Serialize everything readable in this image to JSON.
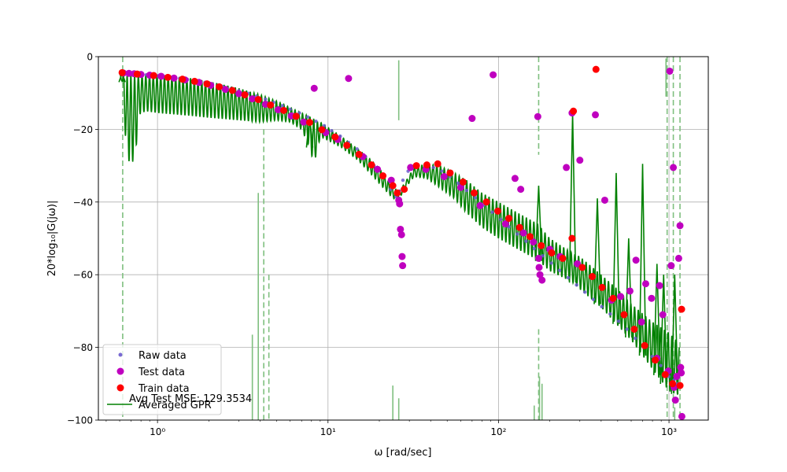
{
  "chart_data": {
    "type": "scatter",
    "title": "",
    "xlabel": "ω [rad/sec]",
    "ylabel": "20*log₁₀|G(jω)|",
    "xscale": "log",
    "xlim": [
      0.45,
      1700
    ],
    "ylim": [
      -100,
      0
    ],
    "grid": true,
    "legend_placement": "lower-left",
    "x_ticks": [
      {
        "value": 1,
        "label": "10⁰"
      },
      {
        "value": 10,
        "label": "10¹"
      },
      {
        "value": 100,
        "label": "10²"
      },
      {
        "value": 1000,
        "label": "10³"
      }
    ],
    "y_ticks": [
      {
        "value": 0,
        "label": "0"
      },
      {
        "value": -20,
        "label": "−20"
      },
      {
        "value": -40,
        "label": "−40"
      },
      {
        "value": -60,
        "label": "−60"
      },
      {
        "value": -80,
        "label": "−80"
      },
      {
        "value": -100,
        "label": "−100"
      }
    ],
    "colors": {
      "raw": "#6a5acd",
      "test": "#bf00bf",
      "train": "#ff0000",
      "gpr": "#008000",
      "band": "#7fbf7f"
    },
    "annotation": "Avg Test MSE: 129.3534",
    "series": [
      {
        "name": "Raw data",
        "marker": "small-dot",
        "x": [
          0.62,
          0.65,
          0.7,
          0.75,
          0.8,
          0.86,
          0.92,
          1.0,
          1.1,
          1.2,
          1.35,
          1.5,
          1.7,
          1.9,
          2.1,
          2.4,
          2.7,
          3.0,
          3.4,
          3.8,
          4.3,
          4.8,
          5.4,
          6.0,
          6.8,
          7.6,
          8.5,
          9.5,
          10.5,
          11.8,
          13.2,
          14.8,
          16.6,
          18.6,
          20.8,
          23.3,
          25.0,
          26.2,
          27.5,
          29.5,
          33.0,
          37.0,
          41.5,
          46.5,
          52.0,
          58.0,
          65.0,
          73.0,
          82.0,
          92.0,
          103.0,
          115.0,
          129.0,
          145.0,
          162.0,
          182.0,
          204.0,
          228.0,
          256.0,
          287.0,
          321.0,
          360.0,
          403.0,
          452.0,
          506.0,
          567.0,
          635.0,
          711.0,
          797.0,
          893.0,
          1000.0,
          1070.0,
          1120.0,
          1170.0
        ],
        "y": [
          -4.5,
          -4.6,
          -4.7,
          -4.8,
          -4.9,
          -5.0,
          -5.1,
          -5.3,
          -5.5,
          -5.7,
          -6.0,
          -6.3,
          -6.7,
          -7.1,
          -7.6,
          -8.2,
          -8.8,
          -9.4,
          -10.1,
          -10.9,
          -11.7,
          -12.6,
          -13.5,
          -14.5,
          -15.5,
          -16.6,
          -17.8,
          -19.0,
          -20.4,
          -21.9,
          -23.6,
          -25.4,
          -27.5,
          -30.0,
          -33.0,
          -36.5,
          -38.5,
          -37.0,
          -34.0,
          -31.5,
          -30.0,
          -30.0,
          -30.5,
          -31.5,
          -33.0,
          -34.8,
          -36.8,
          -38.8,
          -40.8,
          -42.8,
          -44.8,
          -46.8,
          -48.8,
          -50.8,
          -52.8,
          -54.8,
          -56.8,
          -58.8,
          -60.8,
          -62.8,
          -64.8,
          -66.8,
          -68.8,
          -70.8,
          -72.8,
          -75.0,
          -77.5,
          -80.0,
          -82.5,
          -85.0,
          -88.0,
          -89.0,
          -90.0,
          -90.5
        ]
      },
      {
        "name": "Test data",
        "marker": "circle",
        "x": [
          0.63,
          0.68,
          0.73,
          0.8,
          0.9,
          1.05,
          1.25,
          1.45,
          1.75,
          2.05,
          2.5,
          3.0,
          3.6,
          4.3,
          5.1,
          6.1,
          7.2,
          8.3,
          9.7,
          11.4,
          13.2,
          16.0,
          19.5,
          23.5,
          26.0,
          26.3,
          26.6,
          27.0,
          27.2,
          27.4,
          30.5,
          37.5,
          48.0,
          60.0,
          70.0,
          78.0,
          93.0,
          110.0,
          125.0,
          135.0,
          140.0,
          160.0,
          170.0,
          172.0,
          173.0,
          175.0,
          180.0,
          200.0,
          230.0,
          250.0,
          270.0,
          290.0,
          300.0,
          370.0,
          420.0,
          460.0,
          520.0,
          590.0,
          640.0,
          690.0,
          730.0,
          790.0,
          850.0,
          880.0,
          920.0,
          990.0,
          1010.0,
          1030.0,
          1060.0,
          1070.0,
          1090.0,
          1110.0,
          1140.0,
          1160.0,
          1170.0,
          1180.0,
          1190.0
        ],
        "y": [
          -4.5,
          -4.6,
          -4.7,
          -4.9,
          -5.1,
          -5.4,
          -5.9,
          -6.4,
          -7.1,
          -7.9,
          -9.0,
          -10.2,
          -11.6,
          -13.1,
          -14.6,
          -16.3,
          -18.0,
          -8.7,
          -20.9,
          -22.8,
          -6.0,
          -27.5,
          -31.0,
          -34.0,
          -39.5,
          -40.5,
          -47.5,
          -49.0,
          -55.0,
          -57.5,
          -30.5,
          -31.0,
          -33.0,
          -36.0,
          -17.0,
          -41.0,
          -5.0,
          -46.0,
          -33.5,
          -36.5,
          -48.5,
          -51.0,
          -16.5,
          -55.5,
          -58.0,
          -60.0,
          -61.5,
          -53.0,
          -55.0,
          -30.5,
          -15.5,
          -57.0,
          -28.5,
          -16.0,
          -39.5,
          -67.0,
          -66.0,
          -64.5,
          -56.0,
          -73.0,
          -62.5,
          -66.5,
          -83.0,
          -63.0,
          -71.0,
          -86.5,
          -4.0,
          -57.5,
          -30.5,
          -91.0,
          -94.5,
          -88.0,
          -55.5,
          -46.5,
          -85.5,
          -87.0,
          -99.0
        ]
      },
      {
        "name": "Train data",
        "marker": "circle",
        "x": [
          0.62,
          0.76,
          0.95,
          1.15,
          1.4,
          1.65,
          1.95,
          2.3,
          2.75,
          3.25,
          3.9,
          4.6,
          5.5,
          6.5,
          7.8,
          9.2,
          11.0,
          12.9,
          15.2,
          18.0,
          21.0,
          24.0,
          25.5,
          28.0,
          33.0,
          38.0,
          44.0,
          52.0,
          62.0,
          72.0,
          85.0,
          99.0,
          115.0,
          133.0,
          153.0,
          178.0,
          205.0,
          238.0,
          270.0,
          275.0,
          310.0,
          355.0,
          373.0,
          405.0,
          470.0,
          545.0,
          625.0,
          720.0,
          830.0,
          950.0,
          1050.0,
          1160.0,
          1185.0
        ],
        "y": [
          -4.4,
          -4.8,
          -5.2,
          -5.7,
          -6.2,
          -6.8,
          -7.5,
          -8.3,
          -9.3,
          -10.5,
          -11.8,
          -13.3,
          -14.8,
          -16.4,
          -18.1,
          -20.1,
          -22.1,
          -24.4,
          -26.9,
          -29.8,
          -32.8,
          -35.5,
          -37.5,
          -36.5,
          -30.0,
          -29.8,
          -29.5,
          -32.0,
          -34.5,
          -37.5,
          -40.0,
          -42.5,
          -44.5,
          -47.0,
          -49.5,
          -52.0,
          -54.0,
          -55.5,
          -50.0,
          -15.0,
          -58.0,
          -60.5,
          -3.5,
          -63.5,
          -66.5,
          -71.0,
          -75.0,
          -79.5,
          -83.5,
          -87.5,
          -90.0,
          -90.5,
          -69.5
        ]
      },
      {
        "name": "Averaged GPR",
        "marker": "line",
        "anchor_x": [
          0.6,
          0.62,
          0.66,
          0.7,
          0.74,
          0.78,
          0.85,
          1.0,
          1.5,
          2.0,
          3.0,
          4.0,
          5.0,
          6.0,
          7.0,
          7.8,
          8.2,
          8.6,
          9.0,
          10.0,
          12.0,
          15.0,
          18.0,
          21.0,
          24.0,
          26.0,
          28.0,
          32.0,
          38.0,
          45.0,
          55.0,
          65.0,
          80.0,
          100.0,
          130.0,
          170.0,
          200.0,
          270.0,
          300.0,
          400.0,
          500.0,
          600.0,
          800.0,
          1000.0,
          1100.0,
          1150.0
        ],
        "anchor_upper": [
          -5,
          -5,
          -5,
          -5,
          -5,
          -5,
          -5,
          -5,
          -5.8,
          -6.8,
          -8.7,
          -10.5,
          -12.2,
          -14.0,
          -15.5,
          -16.5,
          -17.0,
          -17.8,
          -18.0,
          -19.5,
          -22.0,
          -25.5,
          -28.5,
          -32.0,
          -36.0,
          -37.0,
          -35.0,
          -30.5,
          -29.5,
          -30.0,
          -32.0,
          -34.0,
          -37.5,
          -40.0,
          -43.0,
          -46.0,
          -50.0,
          -54.0,
          -55.0,
          -60.0,
          -64.0,
          -68.0,
          -73.0,
          -76.0,
          -78.0,
          -80.0
        ],
        "anchor_lower": [
          -5,
          -7,
          -28,
          -29.5,
          -28,
          -16,
          -15,
          -15.5,
          -16.2,
          -16.8,
          -17.5,
          -18.0,
          -17.5,
          -18.0,
          -20.0,
          -25.0,
          -29.0,
          -27.0,
          -22.0,
          -23.0,
          -25.0,
          -28.5,
          -32.5,
          -36.0,
          -39.0,
          -39.5,
          -36.5,
          -33.0,
          -33.5,
          -36.0,
          -39.0,
          -43.0,
          -47.0,
          -50.0,
          -53.0,
          -56.0,
          -59.0,
          -62.0,
          -64.0,
          -69.0,
          -74.0,
          -78.0,
          -86.0,
          -92.0,
          -93.0,
          -93.0
        ],
        "peaks": [
          {
            "x": 0.62,
            "y": -4.5
          },
          {
            "x": 7.8,
            "y": -16.5
          },
          {
            "x": 172.0,
            "y": -35.5
          },
          {
            "x": 272.0,
            "y": -15.5
          },
          {
            "x": 380.0,
            "y": -39.0
          },
          {
            "x": 490.0,
            "y": -32.0
          },
          {
            "x": 580.0,
            "y": -50.0
          },
          {
            "x": 700.0,
            "y": -29.5
          },
          {
            "x": 850.0,
            "y": -57.0
          },
          {
            "x": 930.0,
            "y": -60.0
          },
          {
            "x": 1080.0,
            "y": -60.0
          }
        ]
      }
    ],
    "uncertainty_lines": {
      "solid": [
        {
          "x": 3.6,
          "y1": -76.5,
          "y2": -100
        },
        {
          "x": 3.9,
          "y1": -37.5,
          "y2": -100
        },
        {
          "x": 24.0,
          "y1": -90.5,
          "y2": -100
        },
        {
          "x": 26.0,
          "y1": -1.0,
          "y2": -17.5
        },
        {
          "x": 26.0,
          "y1": -94.0,
          "y2": -100
        },
        {
          "x": 162.0,
          "y1": -96.0,
          "y2": -100
        },
        {
          "x": 174.0,
          "y1": -88.0,
          "y2": -100
        },
        {
          "x": 180.0,
          "y1": -90.0,
          "y2": -100
        },
        {
          "x": 960.0,
          "y1": -0.5,
          "y2": -11.0
        },
        {
          "x": 1080.0,
          "y1": -96.5,
          "y2": -100
        }
      ],
      "dashed": [
        {
          "x": 0.625,
          "y1": 0,
          "y2": -100
        },
        {
          "x": 4.2,
          "y1": -20.0,
          "y2": -100
        },
        {
          "x": 4.5,
          "y1": -60.0,
          "y2": -100
        },
        {
          "x": 172.0,
          "y1": 0,
          "y2": -27.0
        },
        {
          "x": 172.0,
          "y1": -75.0,
          "y2": -100
        },
        {
          "x": 975.0,
          "y1": 0,
          "y2": -100
        },
        {
          "x": 1060.0,
          "y1": 0,
          "y2": -100
        },
        {
          "x": 1160.0,
          "y1": 0,
          "y2": -100
        }
      ]
    }
  }
}
